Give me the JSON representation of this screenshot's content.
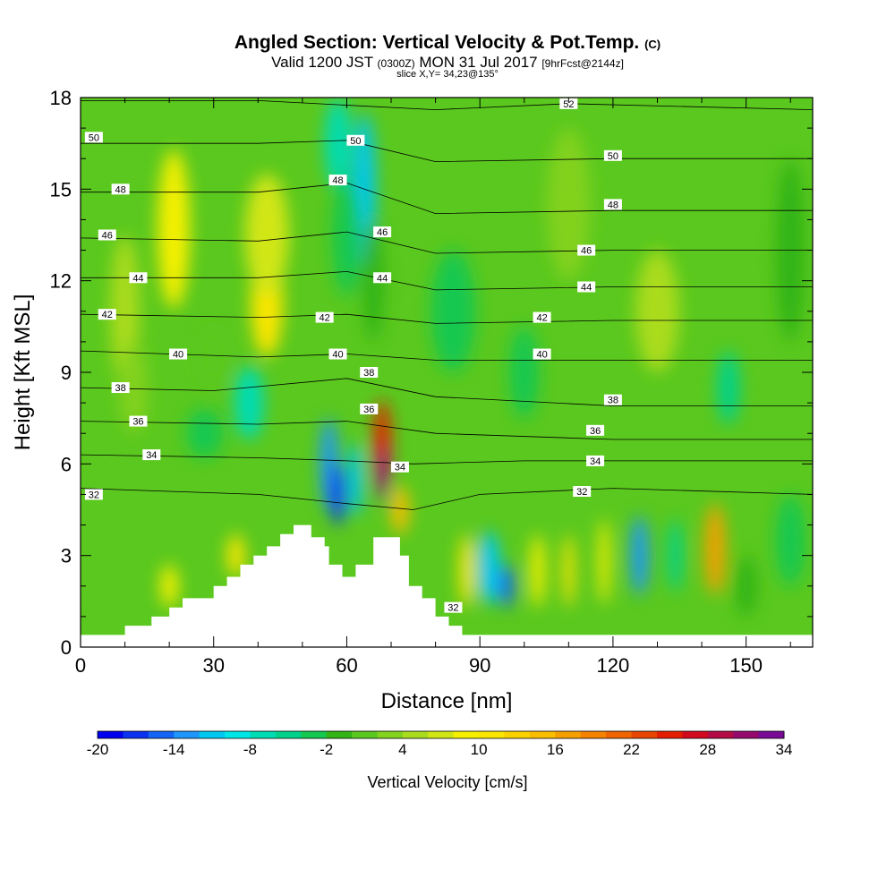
{
  "header": {
    "title": "Angled Section: Vertical Velocity & Pot.Temp.",
    "title_unit": "(C)",
    "valid_prefix": "Valid 1200 JST",
    "valid_zulu": "(0300Z)",
    "valid_date": "MON 31 Jul 2017",
    "forecast": "[9hrFcst@2144z]",
    "slice": "slice X,Y= 34,23@135°"
  },
  "chart_data": {
    "type": "heatmap",
    "xlabel": "Distance [nm]",
    "ylabel": "Height [Kft MSL]",
    "xlim": [
      0,
      165
    ],
    "ylim": [
      0,
      18
    ],
    "x_ticks": [
      0,
      30,
      60,
      90,
      120,
      150
    ],
    "y_ticks": [
      0,
      3,
      6,
      9,
      12,
      15,
      18
    ],
    "colorbar": {
      "label": "Vertical Velocity [cm/s]",
      "tick_labels": [
        "-20",
        "-14",
        "-8",
        "-2",
        "4",
        "10",
        "16",
        "22",
        "28",
        "34"
      ],
      "min": -20,
      "max": 34,
      "step": 2,
      "colors": [
        "#0000f0",
        "#0a32f0",
        "#1464f5",
        "#1e96fa",
        "#00c8f0",
        "#00e6e6",
        "#00dcb4",
        "#00d28c",
        "#14c850",
        "#32b414",
        "#5ac81e",
        "#82d21e",
        "#aadc1e",
        "#d2e614",
        "#f5f000",
        "#fae600",
        "#fad200",
        "#fabe00",
        "#f5a000",
        "#f58200",
        "#f06400",
        "#eb4600",
        "#e61e00",
        "#d20a1e",
        "#b40a46",
        "#960a6e",
        "#780a96"
      ]
    },
    "terrain_profile": [
      {
        "x": 0,
        "z": 0.4
      },
      {
        "x": 10,
        "z": 0.4
      },
      {
        "x": 10,
        "z": 0.7
      },
      {
        "x": 16,
        "z": 0.7
      },
      {
        "x": 16,
        "z": 1.0
      },
      {
        "x": 20,
        "z": 1.0
      },
      {
        "x": 20,
        "z": 1.3
      },
      {
        "x": 23,
        "z": 1.3
      },
      {
        "x": 23,
        "z": 1.6
      },
      {
        "x": 30,
        "z": 1.6
      },
      {
        "x": 30,
        "z": 2.0
      },
      {
        "x": 33,
        "z": 2.0
      },
      {
        "x": 33,
        "z": 2.3
      },
      {
        "x": 36,
        "z": 2.3
      },
      {
        "x": 36,
        "z": 2.7
      },
      {
        "x": 39,
        "z": 2.7
      },
      {
        "x": 39,
        "z": 3.0
      },
      {
        "x": 42,
        "z": 3.0
      },
      {
        "x": 42,
        "z": 3.3
      },
      {
        "x": 45,
        "z": 3.3
      },
      {
        "x": 45,
        "z": 3.7
      },
      {
        "x": 48,
        "z": 3.7
      },
      {
        "x": 48,
        "z": 4.0
      },
      {
        "x": 52,
        "z": 4.0
      },
      {
        "x": 52,
        "z": 3.6
      },
      {
        "x": 55,
        "z": 3.6
      },
      {
        "x": 55,
        "z": 3.3
      },
      {
        "x": 56,
        "z": 3.3
      },
      {
        "x": 56,
        "z": 2.7
      },
      {
        "x": 59,
        "z": 2.7
      },
      {
        "x": 59,
        "z": 2.3
      },
      {
        "x": 62,
        "z": 2.3
      },
      {
        "x": 62,
        "z": 2.7
      },
      {
        "x": 66,
        "z": 2.7
      },
      {
        "x": 66,
        "z": 3.6
      },
      {
        "x": 72,
        "z": 3.6
      },
      {
        "x": 72,
        "z": 3.0
      },
      {
        "x": 74,
        "z": 3.0
      },
      {
        "x": 74,
        "z": 2.0
      },
      {
        "x": 77,
        "z": 2.0
      },
      {
        "x": 77,
        "z": 1.6
      },
      {
        "x": 80,
        "z": 1.6
      },
      {
        "x": 80,
        "z": 1.0
      },
      {
        "x": 83,
        "z": 1.0
      },
      {
        "x": 83,
        "z": 0.7
      },
      {
        "x": 86,
        "z": 0.7
      },
      {
        "x": 86,
        "z": 0.4
      },
      {
        "x": 165,
        "z": 0.4
      }
    ],
    "velocity_cells": [
      {
        "x": 21,
        "z": 13.7,
        "w": 0.022,
        "h": 2.6,
        "v": 9
      },
      {
        "x": 42,
        "z": 11.3,
        "w": 0.022,
        "h": 1.8,
        "v": 10
      },
      {
        "x": 42,
        "z": 13.5,
        "w": 0.03,
        "h": 2.0,
        "v": 6
      },
      {
        "x": 10,
        "z": 11.0,
        "w": 0.02,
        "h": 2.5,
        "v": 4
      },
      {
        "x": 12,
        "z": 8.5,
        "w": 0.02,
        "h": 1.5,
        "v": 2
      },
      {
        "x": 30,
        "z": 9.5,
        "w": 0.02,
        "h": 1.0,
        "v": 0
      },
      {
        "x": 58,
        "z": 16.5,
        "w": 0.018,
        "h": 1.5,
        "v": -8
      },
      {
        "x": 64,
        "z": 15.0,
        "w": 0.015,
        "h": 2.5,
        "v": -12
      },
      {
        "x": 60,
        "z": 13.5,
        "w": 0.02,
        "h": 2.0,
        "v": -4
      },
      {
        "x": 66,
        "z": 12.0,
        "w": 0.015,
        "h": 2.0,
        "v": -2
      },
      {
        "x": 38,
        "z": 8.0,
        "w": 0.02,
        "h": 1.2,
        "v": -8
      },
      {
        "x": 28,
        "z": 7.0,
        "w": 0.025,
        "h": 0.8,
        "v": -4
      },
      {
        "x": 56,
        "z": 6.0,
        "w": 0.012,
        "h": 1.5,
        "v": -14
      },
      {
        "x": 58,
        "z": 5.0,
        "w": 0.01,
        "h": 1.0,
        "v": -18
      },
      {
        "x": 62,
        "z": 5.5,
        "w": 0.01,
        "h": 1.2,
        "v": -12
      },
      {
        "x": 68,
        "z": 6.5,
        "w": 0.012,
        "h": 1.6,
        "v": 24
      },
      {
        "x": 68,
        "z": 5.6,
        "w": 0.006,
        "h": 0.9,
        "v": 34
      },
      {
        "x": 72,
        "z": 4.5,
        "w": 0.012,
        "h": 0.8,
        "v": 14
      },
      {
        "x": 92,
        "z": 2.6,
        "w": 0.015,
        "h": 1.2,
        "v": -12
      },
      {
        "x": 96,
        "z": 2.0,
        "w": 0.01,
        "h": 0.7,
        "v": -16
      },
      {
        "x": 87,
        "z": 2.5,
        "w": 0.01,
        "h": 1.2,
        "v": 10
      },
      {
        "x": 103,
        "z": 2.5,
        "w": 0.01,
        "h": 1.2,
        "v": 8
      },
      {
        "x": 110,
        "z": 2.5,
        "w": 0.008,
        "h": 1.2,
        "v": 10
      },
      {
        "x": 118,
        "z": 2.8,
        "w": 0.008,
        "h": 1.4,
        "v": 8
      },
      {
        "x": 126,
        "z": 3.0,
        "w": 0.012,
        "h": 1.3,
        "v": -14
      },
      {
        "x": 134,
        "z": 3.0,
        "w": 0.01,
        "h": 1.2,
        "v": -6
      },
      {
        "x": 143,
        "z": 3.2,
        "w": 0.014,
        "h": 1.5,
        "v": 16
      },
      {
        "x": 146,
        "z": 8.5,
        "w": 0.015,
        "h": 1.2,
        "v": -6
      },
      {
        "x": 150,
        "z": 2.0,
        "w": 0.015,
        "h": 1.0,
        "v": -2
      },
      {
        "x": 160,
        "z": 3.5,
        "w": 0.02,
        "h": 1.5,
        "v": -4
      },
      {
        "x": 20,
        "z": 2.0,
        "w": 0.012,
        "h": 0.7,
        "v": 8
      },
      {
        "x": 35,
        "z": 3.0,
        "w": 0.012,
        "h": 0.7,
        "v": 10
      },
      {
        "x": 84,
        "z": 11.0,
        "w": 0.03,
        "h": 2.0,
        "v": -4
      },
      {
        "x": 110,
        "z": 14.5,
        "w": 0.03,
        "h": 2.5,
        "v": 2
      },
      {
        "x": 100,
        "z": 9.0,
        "w": 0.02,
        "h": 1.5,
        "v": -4
      },
      {
        "x": 130,
        "z": 11.0,
        "w": 0.03,
        "h": 2.0,
        "v": 4
      },
      {
        "x": 160,
        "z": 13.0,
        "w": 0.02,
        "h": 3.0,
        "v": -2
      }
    ],
    "contours": [
      {
        "label": "32",
        "pts": [
          [
            0,
            5.2
          ],
          [
            40,
            5.0
          ],
          [
            60,
            4.7
          ],
          [
            75,
            4.5
          ],
          [
            90,
            5.0
          ],
          [
            120,
            5.2
          ],
          [
            165,
            5.0
          ]
        ]
      },
      {
        "label": "34",
        "pts": [
          [
            0,
            6.3
          ],
          [
            40,
            6.2
          ],
          [
            60,
            6.1
          ],
          [
            75,
            6.0
          ],
          [
            100,
            6.1
          ],
          [
            165,
            6.1
          ]
        ]
      },
      {
        "label": "36",
        "pts": [
          [
            0,
            7.4
          ],
          [
            40,
            7.3
          ],
          [
            60,
            7.4
          ],
          [
            80,
            7.0
          ],
          [
            120,
            6.8
          ],
          [
            165,
            6.8
          ]
        ]
      },
      {
        "label": "38",
        "pts": [
          [
            0,
            8.5
          ],
          [
            30,
            8.4
          ],
          [
            60,
            8.8
          ],
          [
            80,
            8.2
          ],
          [
            120,
            7.9
          ],
          [
            165,
            7.9
          ]
        ]
      },
      {
        "label": "40",
        "pts": [
          [
            0,
            9.7
          ],
          [
            40,
            9.5
          ],
          [
            60,
            9.6
          ],
          [
            80,
            9.4
          ],
          [
            120,
            9.4
          ],
          [
            165,
            9.4
          ]
        ]
      },
      {
        "label": "42",
        "pts": [
          [
            0,
            10.9
          ],
          [
            40,
            10.8
          ],
          [
            60,
            10.9
          ],
          [
            80,
            10.6
          ],
          [
            120,
            10.7
          ],
          [
            165,
            10.7
          ]
        ]
      },
      {
        "label": "44",
        "pts": [
          [
            0,
            12.1
          ],
          [
            40,
            12.1
          ],
          [
            60,
            12.3
          ],
          [
            80,
            11.7
          ],
          [
            120,
            11.8
          ],
          [
            165,
            11.8
          ]
        ]
      },
      {
        "label": "46",
        "pts": [
          [
            0,
            13.4
          ],
          [
            40,
            13.3
          ],
          [
            60,
            13.6
          ],
          [
            80,
            12.9
          ],
          [
            120,
            13.0
          ],
          [
            165,
            13.0
          ]
        ]
      },
      {
        "label": "48",
        "pts": [
          [
            0,
            14.9
          ],
          [
            40,
            14.9
          ],
          [
            60,
            15.2
          ],
          [
            80,
            14.2
          ],
          [
            120,
            14.3
          ],
          [
            165,
            14.3
          ]
        ]
      },
      {
        "label": "50",
        "pts": [
          [
            0,
            16.5
          ],
          [
            40,
            16.5
          ],
          [
            60,
            16.6
          ],
          [
            80,
            15.9
          ],
          [
            120,
            16.0
          ],
          [
            165,
            16.0
          ]
        ]
      },
      {
        "label": "52",
        "pts": [
          [
            0,
            17.9
          ],
          [
            40,
            17.9
          ],
          [
            80,
            17.6
          ],
          [
            110,
            17.8
          ],
          [
            165,
            17.6
          ]
        ]
      }
    ],
    "contour_labels": [
      {
        "text": "50",
        "x": 3,
        "y": 16.7
      },
      {
        "text": "48",
        "x": 9,
        "y": 15.0
      },
      {
        "text": "46",
        "x": 6,
        "y": 13.5
      },
      {
        "text": "44",
        "x": 13,
        "y": 12.1
      },
      {
        "text": "42",
        "x": 6,
        "y": 10.9
      },
      {
        "text": "40",
        "x": 22,
        "y": 9.6
      },
      {
        "text": "38",
        "x": 9,
        "y": 8.5
      },
      {
        "text": "36",
        "x": 13,
        "y": 7.4
      },
      {
        "text": "34",
        "x": 16,
        "y": 6.3
      },
      {
        "text": "32",
        "x": 3,
        "y": 5.0
      },
      {
        "text": "50",
        "x": 62,
        "y": 16.6
      },
      {
        "text": "48",
        "x": 58,
        "y": 15.3
      },
      {
        "text": "46",
        "x": 68,
        "y": 13.6
      },
      {
        "text": "44",
        "x": 68,
        "y": 12.1
      },
      {
        "text": "42",
        "x": 55,
        "y": 10.8
      },
      {
        "text": "40",
        "x": 58,
        "y": 9.6
      },
      {
        "text": "38",
        "x": 65,
        "y": 9.0
      },
      {
        "text": "36",
        "x": 65,
        "y": 7.8
      },
      {
        "text": "34",
        "x": 72,
        "y": 5.9
      },
      {
        "text": "32",
        "x": 84,
        "y": 1.3
      },
      {
        "text": "52",
        "x": 110,
        "y": 17.8
      },
      {
        "text": "50",
        "x": 120,
        "y": 16.1
      },
      {
        "text": "48",
        "x": 120,
        "y": 14.5
      },
      {
        "text": "46",
        "x": 114,
        "y": 13.0
      },
      {
        "text": "44",
        "x": 114,
        "y": 11.8
      },
      {
        "text": "42",
        "x": 104,
        "y": 10.8
      },
      {
        "text": "40",
        "x": 104,
        "y": 9.6
      },
      {
        "text": "38",
        "x": 120,
        "y": 8.1
      },
      {
        "text": "36",
        "x": 116,
        "y": 7.1
      },
      {
        "text": "34",
        "x": 116,
        "y": 6.1
      },
      {
        "text": "32",
        "x": 113,
        "y": 5.1
      }
    ]
  }
}
